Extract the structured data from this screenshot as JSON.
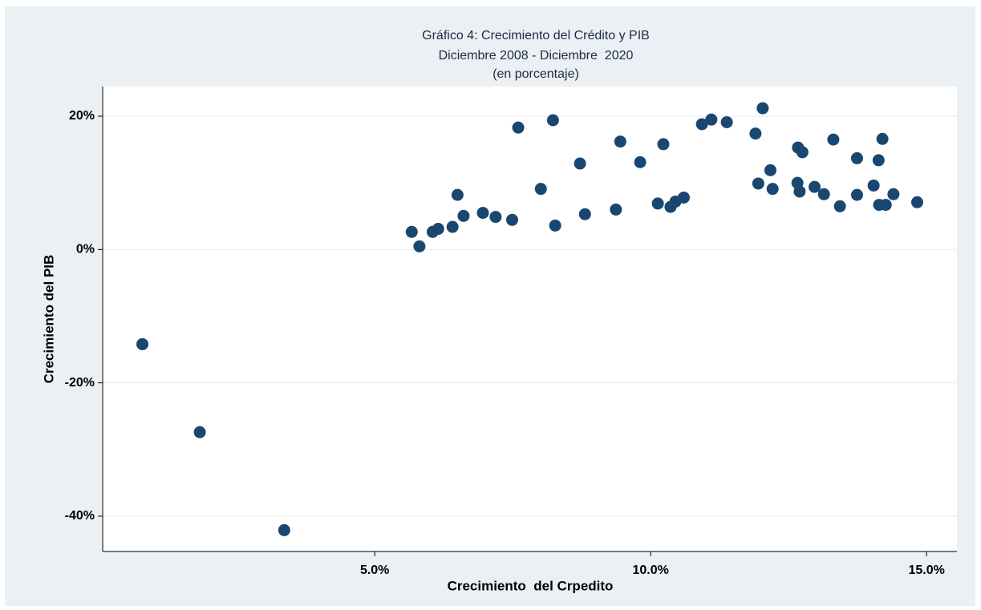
{
  "chart_data": {
    "type": "scatter",
    "title": "Gráfico 4: Crecimiento del Crédito y PIB",
    "subtitle": [
      "Diciembre 2008 - Diciembre  2020",
      "(en porcentaje)"
    ],
    "x_label": "Crecimiento  del Crpedito",
    "y_label": "Crecimiento del PIB",
    "color": "#1a476f",
    "grid": true,
    "xlim": [
      0.07,
      15.55
    ],
    "ylim": [
      -45.3,
      24.45
    ],
    "xticks": [
      {
        "value": 5,
        "label": "5.0%"
      },
      {
        "value": 10,
        "label": "10.0%"
      },
      {
        "value": 15,
        "label": "15.0%"
      }
    ],
    "yticks": [
      {
        "value": -40,
        "label": "-40%"
      },
      {
        "value": -20,
        "label": "-20%"
      },
      {
        "value": 0,
        "label": "0%"
      },
      {
        "value": 20,
        "label": "20%"
      }
    ],
    "x": [
      0.79,
      1.83,
      3.36,
      5.67,
      5.81,
      6.05,
      6.15,
      6.41,
      6.5,
      6.61,
      6.96,
      7.19,
      7.49,
      7.6,
      8.01,
      8.23,
      8.27,
      8.72,
      8.81,
      9.37,
      9.45,
      9.81,
      10.13,
      10.23,
      10.36,
      10.45,
      10.6,
      10.93,
      11.1,
      11.38,
      11.9,
      11.95,
      12.03,
      12.17,
      12.21,
      12.66,
      12.67,
      12.7,
      12.75,
      12.97,
      13.14,
      13.31,
      13.43,
      13.74,
      13.74,
      14.04,
      14.13,
      14.14,
      14.2,
      14.26,
      14.4,
      14.83
    ],
    "values": [
      -14.2,
      -27.4,
      -42.1,
      2.65,
      0.48,
      2.65,
      3.1,
      3.4,
      8.2,
      5.05,
      5.5,
      4.9,
      4.45,
      18.3,
      9.1,
      19.4,
      3.6,
      12.9,
      5.3,
      6.0,
      16.2,
      13.1,
      6.9,
      15.8,
      6.4,
      7.2,
      7.8,
      18.8,
      19.5,
      19.1,
      17.4,
      9.9,
      21.2,
      11.9,
      9.1,
      10.0,
      15.3,
      8.7,
      14.6,
      9.4,
      8.3,
      16.5,
      6.5,
      8.2,
      13.7,
      9.6,
      13.4,
      6.7,
      16.6,
      6.7,
      8.3,
      7.1
    ]
  }
}
